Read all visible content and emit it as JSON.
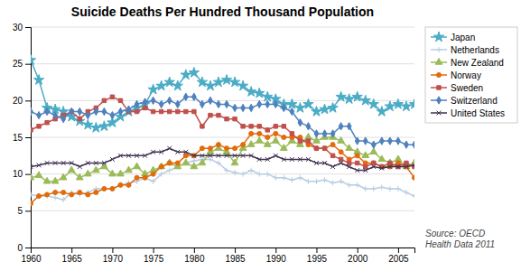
{
  "chart_data": {
    "type": "line",
    "title": "Suicide Deaths Per Hundred Thousand Population",
    "annotations": [
      "Source: OECD\nHealth Data 2011"
    ],
    "x": [
      1960,
      1961,
      1962,
      1963,
      1964,
      1965,
      1966,
      1967,
      1968,
      1969,
      1970,
      1971,
      1972,
      1973,
      1974,
      1975,
      1976,
      1977,
      1978,
      1979,
      1980,
      1981,
      1982,
      1983,
      1984,
      1985,
      1986,
      1987,
      1988,
      1989,
      1990,
      1991,
      1992,
      1993,
      1994,
      1995,
      1996,
      1997,
      1998,
      1999,
      2000,
      2001,
      2002,
      2003,
      2004,
      2005,
      2006,
      2007
    ],
    "xlim": [
      1960,
      2007
    ],
    "xticks": [
      1960,
      1965,
      1970,
      1975,
      1980,
      1985,
      1990,
      1995,
      2000,
      2005
    ],
    "ylim": [
      0,
      30
    ],
    "yticks": [
      0,
      5,
      10,
      15,
      20,
      25,
      30
    ],
    "grid": "y",
    "legend": "upper right",
    "series": [
      {
        "name": "Japan",
        "color": "#4BACC6",
        "marker": "star",
        "values": [
          25.5,
          22.8,
          19.0,
          18.8,
          18.5,
          17.8,
          17.2,
          16.7,
          16.3,
          16.5,
          17.0,
          17.8,
          18.5,
          19.0,
          19.5,
          21.5,
          22.0,
          22.5,
          22.0,
          23.5,
          23.8,
          22.5,
          22.0,
          22.5,
          22.8,
          22.5,
          22.0,
          21.2,
          21.0,
          20.5,
          20.2,
          19.5,
          19.5,
          19.0,
          19.5,
          18.5,
          18.8,
          19.0,
          20.5,
          20.2,
          20.5,
          20.0,
          19.5,
          18.5,
          19.2,
          19.5,
          19.2,
          19.5
        ]
      },
      {
        "name": "Netherlands",
        "color": "#B8CCE4",
        "marker": "plus",
        "values": [
          7.2,
          7.0,
          7.0,
          6.8,
          6.5,
          7.5,
          7.2,
          7.5,
          8.0,
          8.0,
          8.0,
          8.5,
          8.8,
          9.0,
          9.5,
          9.0,
          10.0,
          10.5,
          11.0,
          11.5,
          11.8,
          12.0,
          12.0,
          11.5,
          10.5,
          10.2,
          10.0,
          10.5,
          10.0,
          10.0,
          9.5,
          9.5,
          9.2,
          9.5,
          9.0,
          9.0,
          9.2,
          8.8,
          9.0,
          8.5,
          8.5,
          8.0,
          8.0,
          8.2,
          8.0,
          8.0,
          7.5,
          7.0
        ]
      },
      {
        "name": "New Zealand",
        "color": "#9BBB59",
        "marker": "triangle",
        "values": [
          9.5,
          9.8,
          9.0,
          9.0,
          9.5,
          10.5,
          9.5,
          10.0,
          10.5,
          11.0,
          10.0,
          10.0,
          10.5,
          11.0,
          10.0,
          10.5,
          11.0,
          11.5,
          11.0,
          11.5,
          11.0,
          11.5,
          13.0,
          13.5,
          13.0,
          11.5,
          13.5,
          14.0,
          14.5,
          14.0,
          14.5,
          13.5,
          14.5,
          14.0,
          15.0,
          14.5,
          15.0,
          15.0,
          14.5,
          13.5,
          13.0,
          12.5,
          13.0,
          12.0,
          11.5,
          12.0,
          11.0,
          11.5
        ]
      },
      {
        "name": "Norway",
        "color": "#E26B0A",
        "marker": "circle",
        "values": [
          6.0,
          7.0,
          7.2,
          7.5,
          7.5,
          7.2,
          7.5,
          7.2,
          7.5,
          8.0,
          8.0,
          8.5,
          8.5,
          9.5,
          9.5,
          10.0,
          11.0,
          11.5,
          11.5,
          12.5,
          12.5,
          13.5,
          13.5,
          14.0,
          13.5,
          13.5,
          14.0,
          15.5,
          15.5,
          15.0,
          15.5,
          15.0,
          15.0,
          15.0,
          14.0,
          13.5,
          13.5,
          14.0,
          13.0,
          12.0,
          12.5,
          11.5,
          11.5,
          11.0,
          11.0,
          11.5,
          11.0,
          9.5
        ]
      },
      {
        "name": "Sweden",
        "color": "#C0504D",
        "marker": "square",
        "values": [
          16.0,
          16.5,
          17.0,
          17.5,
          18.0,
          18.5,
          17.5,
          18.5,
          19.0,
          20.0,
          20.5,
          20.0,
          18.5,
          18.5,
          19.0,
          18.5,
          18.5,
          18.5,
          18.5,
          18.5,
          18.5,
          16.5,
          18.0,
          18.0,
          17.5,
          17.5,
          16.5,
          16.5,
          16.5,
          16.0,
          16.5,
          16.5,
          15.5,
          14.5,
          14.5,
          13.5,
          13.5,
          12.5,
          12.0,
          11.5,
          11.5,
          11.0,
          11.5,
          11.0,
          11.5,
          11.0,
          11.5,
          11.0
        ]
      },
      {
        "name": "Switzerland",
        "color": "#4F81BD",
        "marker": "diamond",
        "values": [
          18.5,
          18.0,
          18.5,
          18.0,
          17.5,
          18.5,
          18.5,
          18.0,
          18.5,
          18.5,
          18.0,
          18.5,
          18.8,
          19.5,
          19.8,
          20.0,
          19.5,
          20.0,
          19.5,
          20.5,
          20.5,
          19.5,
          20.0,
          19.5,
          19.5,
          19.0,
          19.0,
          19.0,
          19.5,
          19.5,
          19.5,
          19.0,
          18.5,
          17.0,
          16.5,
          15.5,
          15.5,
          15.5,
          16.5,
          16.5,
          14.5,
          14.5,
          14.0,
          14.5,
          14.5,
          14.5,
          14.0,
          14.0
        ]
      },
      {
        "name": "United States",
        "color": "#403151",
        "marker": "x",
        "values": [
          11.0,
          11.2,
          11.5,
          11.5,
          11.5,
          11.5,
          11.0,
          11.5,
          11.5,
          11.5,
          12.0,
          12.5,
          12.5,
          12.5,
          12.5,
          13.0,
          13.0,
          13.5,
          13.0,
          13.0,
          12.5,
          12.5,
          12.5,
          12.5,
          12.5,
          12.5,
          12.5,
          12.5,
          12.0,
          12.0,
          12.5,
          12.0,
          12.0,
          12.0,
          12.0,
          11.5,
          11.5,
          11.0,
          11.5,
          11.0,
          10.5,
          10.5,
          11.0,
          10.8,
          11.0,
          11.0,
          11.0,
          11.2
        ]
      }
    ]
  }
}
